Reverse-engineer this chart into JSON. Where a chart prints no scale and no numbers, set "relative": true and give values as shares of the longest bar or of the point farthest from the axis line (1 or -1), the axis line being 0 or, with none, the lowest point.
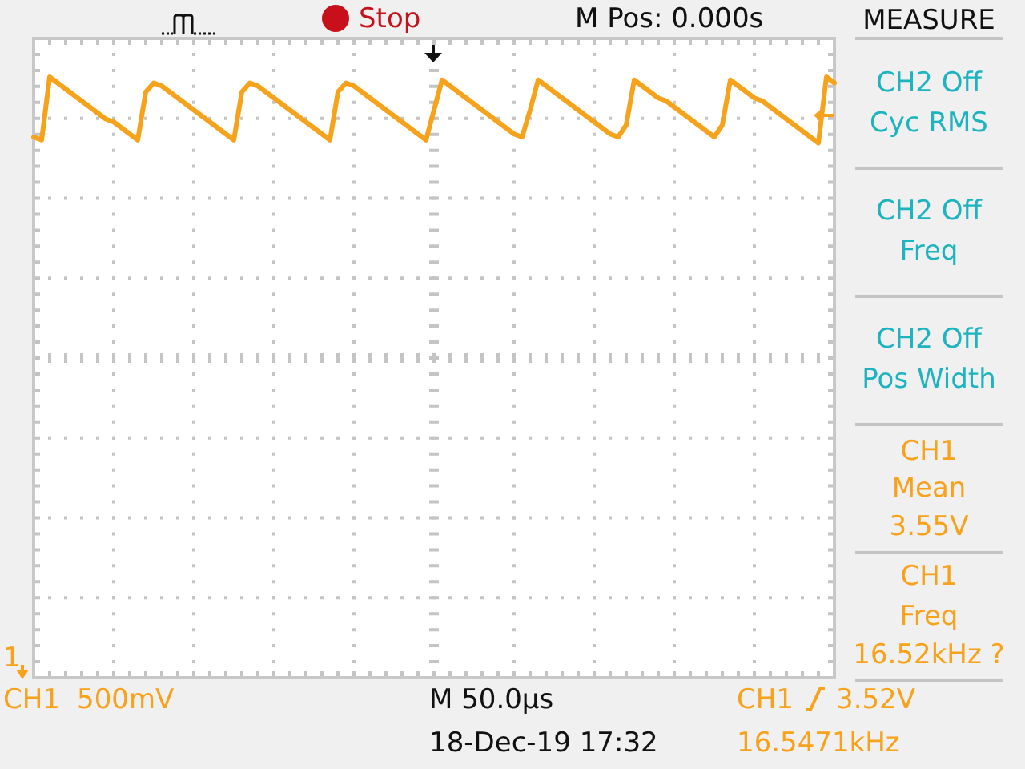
{
  "chart_data": {
    "type": "line",
    "relative": true,
    "grid": true,
    "color": "#f7a21b",
    "categories": [
      null,
      null,
      null,
      null,
      null,
      null,
      null,
      null,
      null,
      null,
      null,
      null,
      null,
      null,
      null,
      null,
      null,
      null,
      null,
      null,
      null,
      null,
      null,
      null,
      null,
      null,
      null,
      null,
      null,
      null,
      null,
      null,
      null,
      null,
      null,
      null,
      null,
      null,
      null,
      null,
      null,
      null,
      null,
      null,
      null,
      null,
      null,
      null,
      null,
      null,
      null,
      null,
      null,
      null,
      null,
      null,
      null,
      null,
      null,
      null,
      null,
      null,
      null,
      null,
      null,
      null,
      null,
      null,
      null,
      null,
      null,
      null,
      null,
      null,
      null,
      null,
      null,
      null,
      null,
      null,
      null,
      null,
      null,
      null,
      null,
      null,
      null,
      null,
      null,
      null,
      null,
      null,
      null,
      null,
      null,
      null,
      null,
      null,
      null,
      null,
      null
    ],
    "values": [
      0.9,
      0.895,
      1,
      0.99,
      0.98,
      0.97,
      0.96,
      0.95,
      0.94,
      0.93,
      0.925,
      0.915,
      0.905,
      0.895,
      0.975,
      0.99,
      0.985,
      0.975,
      0.965,
      0.955,
      0.945,
      0.935,
      0.925,
      0.915,
      0.905,
      0.895,
      0.975,
      0.99,
      0.985,
      0.975,
      0.965,
      0.955,
      0.945,
      0.935,
      0.925,
      0.915,
      0.905,
      0.895,
      0.975,
      0.99,
      0.985,
      0.975,
      0.965,
      0.955,
      0.945,
      0.935,
      0.925,
      0.915,
      0.905,
      0.895,
      0.945,
      0.995,
      0.985,
      0.975,
      0.965,
      0.955,
      0.945,
      0.935,
      0.925,
      0.915,
      0.905,
      0.9,
      0.945,
      0.995,
      0.985,
      0.975,
      0.965,
      0.955,
      0.945,
      0.935,
      0.925,
      0.915,
      0.905,
      0.9,
      0.92,
      0.995,
      0.985,
      0.975,
      0.965,
      0.96,
      0.95,
      0.94,
      0.93,
      0.92,
      0.91,
      0.9,
      0.92,
      0.995,
      0.985,
      0.975,
      0.965,
      0.96,
      0.95,
      0.94,
      0.93,
      0.92,
      0.91,
      0.9,
      0.89,
      1,
      0.99
    ],
    "annotations": [
      "Stop",
      "M Pos: 0.000s",
      "MEASURE",
      "CH2 Off",
      "Cyc RMS",
      "CH2 Off",
      "Freq",
      "CH2 Off",
      "Pos Width",
      "CH1",
      "Mean",
      "3.55V",
      "CH1",
      "Freq",
      "16.52kHz ?",
      "1",
      "CH1",
      "500mV",
      "M 50.0µs",
      "CH1",
      "3.52V",
      "18-Dec-19 17:32",
      "16.5471kHz"
    ]
  }
}
